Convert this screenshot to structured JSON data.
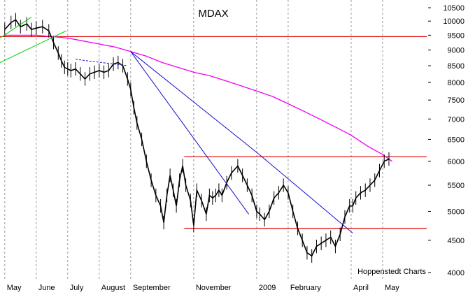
{
  "chart_data": {
    "type": "line",
    "title": "MDAX",
    "watermark": "Hoppenstedt Charts",
    "xlabel": "",
    "ylabel": "",
    "y_scale": "log",
    "ylim": [
      3900,
      10800
    ],
    "y_ticks": [
      4000,
      4500,
      5000,
      5500,
      6000,
      6500,
      7000,
      7500,
      8000,
      8500,
      9000,
      9500,
      10000,
      10500
    ],
    "y_tick_labels": [
      "4000",
      "4500",
      "5000",
      "5500",
      "6000",
      "6500",
      "7000",
      "7500",
      "8000",
      "8500",
      "9000",
      "9500",
      "10000",
      "10500"
    ],
    "x_tick_labels": [
      "May",
      "June",
      "July",
      "August",
      "September",
      "November",
      "2009",
      "February",
      "April",
      "May"
    ],
    "x_tick_positions": [
      0.0,
      1.0,
      2.0,
      3.0,
      4.0,
      6.0,
      8.0,
      9.0,
      11.0,
      12.0
    ],
    "xlim": [
      -0.15,
      13.4
    ],
    "grid": "vertical dashed",
    "colors": {
      "price": "#000000",
      "moving_average": "#ee00ee",
      "horizontal_lines": "#dd0000",
      "trendlines": "#1010cc",
      "early_trendlines": "#00cc00",
      "grid": "#9a9a9a"
    },
    "series": [
      {
        "role": "price",
        "x": [
          0.0,
          0.2,
          0.35,
          0.5,
          0.7,
          0.85,
          1.0,
          1.2,
          1.4,
          1.55,
          1.7,
          1.8,
          1.9,
          2.0,
          2.1,
          2.25,
          2.4,
          2.55,
          2.7,
          2.85,
          3.0,
          3.15,
          3.3,
          3.45,
          3.6,
          3.75,
          3.9,
          4.0,
          4.1,
          4.2,
          4.35,
          4.5,
          4.65,
          4.8,
          4.95,
          5.05,
          5.15,
          5.25,
          5.35,
          5.45,
          5.55,
          5.65,
          5.75,
          5.9,
          6.0,
          6.1,
          6.25,
          6.4,
          6.5,
          6.6,
          6.7,
          6.8,
          6.9,
          7.05,
          7.2,
          7.4,
          7.55,
          7.7,
          7.85,
          8.0,
          8.1,
          8.25,
          8.4,
          8.55,
          8.7,
          8.85,
          9.0,
          9.15,
          9.3,
          9.45,
          9.6,
          9.75,
          9.9,
          10.05,
          10.2,
          10.35,
          10.5,
          10.65,
          10.8,
          10.95,
          11.05,
          11.15,
          11.3,
          11.45,
          11.6,
          11.75,
          11.9,
          12.05,
          12.2
        ],
        "values": [
          9700,
          9950,
          10050,
          9800,
          9900,
          9700,
          9750,
          9800,
          9650,
          9250,
          8900,
          8650,
          8450,
          8400,
          8350,
          8400,
          8250,
          8100,
          8250,
          8300,
          8350,
          8300,
          8350,
          8550,
          8600,
          8500,
          8100,
          7800,
          7300,
          6900,
          6500,
          6000,
          5600,
          5300,
          5100,
          4800,
          5300,
          5700,
          5400,
          5100,
          5600,
          5900,
          5500,
          5200,
          4750,
          5400,
          5200,
          4950,
          5300,
          5250,
          5300,
          5400,
          5300,
          5550,
          5750,
          5900,
          5700,
          5500,
          5300,
          5000,
          4950,
          4850,
          5000,
          5250,
          5350,
          5500,
          5350,
          5000,
          4700,
          4500,
          4300,
          4250,
          4400,
          4450,
          4500,
          4550,
          4400,
          4600,
          4900,
          5100,
          5100,
          5250,
          5350,
          5400,
          5500,
          5600,
          5800,
          6000,
          6050
        ]
      },
      {
        "role": "moving_average",
        "x": [
          0.0,
          0.5,
          1.0,
          1.5,
          2.0,
          2.5,
          3.0,
          3.5,
          4.0,
          4.5,
          5.0,
          5.5,
          6.0,
          6.5,
          7.0,
          7.5,
          8.0,
          8.5,
          9.0,
          9.5,
          10.0,
          10.5,
          11.0,
          11.5,
          12.0,
          12.3
        ],
        "values": [
          9500,
          9500,
          9500,
          9450,
          9400,
          9300,
          9200,
          9100,
          8950,
          8800,
          8600,
          8450,
          8300,
          8200,
          8050,
          7900,
          7750,
          7600,
          7400,
          7200,
          7000,
          6800,
          6600,
          6350,
          6150,
          6000
        ]
      }
    ],
    "horizontal_lines": [
      {
        "value": 9450,
        "x_from": -0.15,
        "x_to": 13.4
      },
      {
        "value": 6100,
        "x_from": 5.7,
        "x_to": 13.4
      },
      {
        "value": 4700,
        "x_from": 5.7,
        "x_to": 13.4
      }
    ],
    "trendlines": [
      {
        "x": [
          4.0,
          8.0,
          11.05
        ],
        "values": [
          8950,
          6200,
          4620
        ]
      },
      {
        "x": [
          4.0,
          7.75
        ],
        "values": [
          8950,
          4950
        ]
      },
      {
        "x": [
          2.25,
          3.9
        ],
        "values": [
          8700,
          8500
        ]
      },
      {
        "x": [
          -0.15,
          1.95
        ],
        "values": [
          8600,
          9650
        ]
      },
      {
        "x": [
          -0.15,
          0.85
        ],
        "values": [
          9400,
          10150
        ]
      }
    ]
  }
}
